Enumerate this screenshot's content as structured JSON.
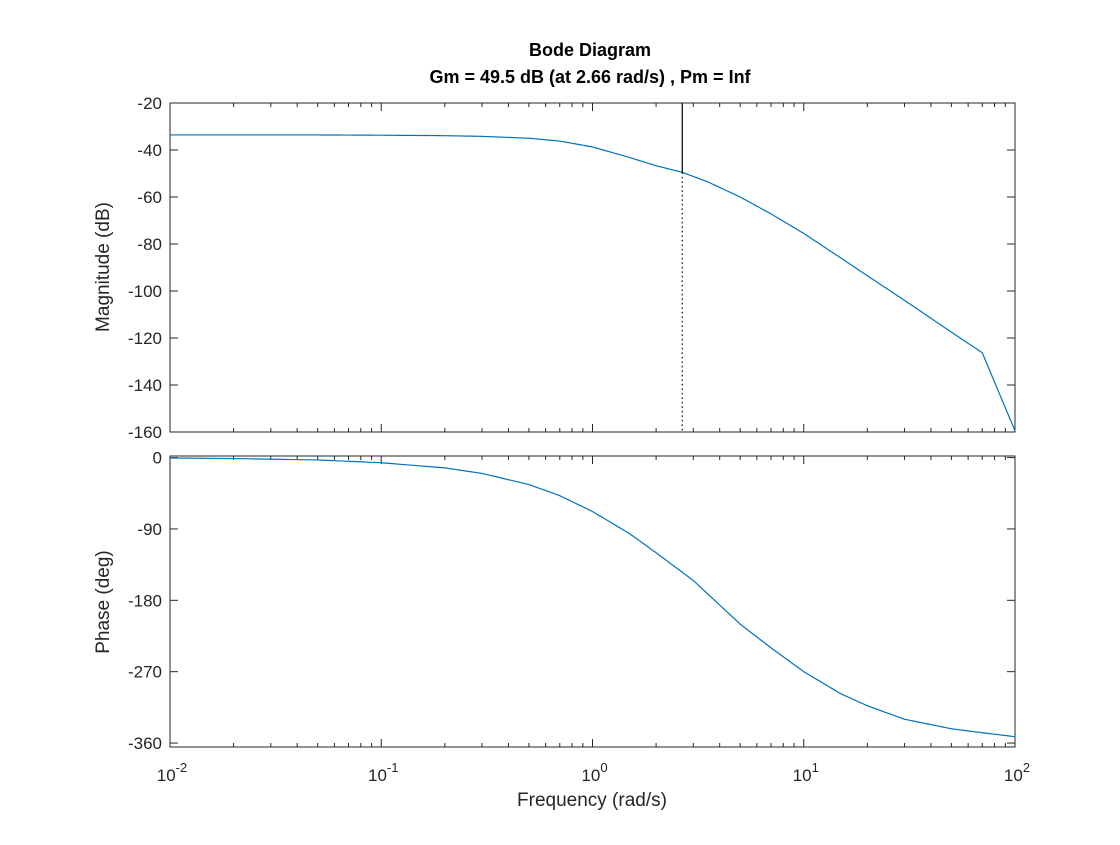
{
  "chart_data": {
    "type": "line",
    "title": "Bode Diagram",
    "subtitle": "Gm = 49.5 dB (at 2.66 rad/s) ,  Pm = Inf",
    "xlabel": "Frequency  (rad/s)",
    "xscale": "log",
    "xlim": [
      0.01,
      100
    ],
    "x_ticks": [
      {
        "base": "10",
        "exp": "-2"
      },
      {
        "base": "10",
        "exp": "-1"
      },
      {
        "base": "10",
        "exp": "0"
      },
      {
        "base": "10",
        "exp": "1"
      },
      {
        "base": "10",
        "exp": "2"
      }
    ],
    "grid": false,
    "line_color": "#0072BD",
    "panels": [
      {
        "name": "magnitude",
        "ylabel": "Magnitude (dB)",
        "ylim": [
          -160,
          -20
        ],
        "y_ticks": [
          -20,
          -40,
          -60,
          -80,
          -100,
          -120,
          -140,
          -160
        ],
        "series": [
          {
            "x": [
              0.01,
              0.02,
              0.05,
              0.1,
              0.2,
              0.3,
              0.5,
              0.7,
              1.0,
              1.5,
              2.0,
              2.66,
              3.5,
              5.0,
              7.0,
              10.0,
              15.0,
              20.0,
              30.0,
              50.0,
              70.0,
              100.0
            ],
            "y": [
              -33.6,
              -33.6,
              -33.6,
              -33.7,
              -33.9,
              -34.2,
              -35.0,
              -36.2,
              -38.7,
              -43.2,
              -46.7,
              -49.5,
              -53.5,
              -60.0,
              -67.2,
              -75.5,
              -86.0,
              -93.5,
              -104.0,
              -117.5,
              -126.3,
              -159.5
            ]
          }
        ],
        "marker": {
          "frequency": 2.66,
          "top_value": -20,
          "value": -49.5
        }
      },
      {
        "name": "phase",
        "ylabel": "Phase (deg)",
        "ylim": [
          -365,
          2
        ],
        "y_ticks": [
          0,
          -90,
          -180,
          -270,
          -360
        ],
        "series": [
          {
            "x": [
              0.01,
              0.02,
              0.05,
              0.1,
              0.2,
              0.3,
              0.5,
              0.7,
              1.0,
              1.5,
              2.0,
              3.0,
              5.0,
              7.0,
              10.0,
              15.0,
              20.0,
              30.0,
              50.0,
              70.0,
              100.0
            ],
            "y": [
              -0.5,
              -1.2,
              -3.0,
              -6.5,
              -13.0,
              -20.0,
              -34.0,
              -48.0,
              -68.0,
              -96.0,
              -120.0,
              -155.0,
              -210.0,
              -240.0,
              -270.0,
              -298.0,
              -313.0,
              -330.0,
              -342.0,
              -347.0,
              -352.0
            ]
          }
        ]
      }
    ]
  }
}
